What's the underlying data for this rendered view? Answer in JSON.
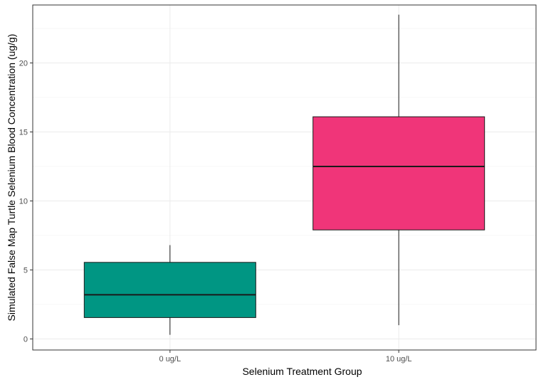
{
  "chart_data": {
    "type": "boxplot",
    "title": "",
    "xlabel": "Selenium Treatment Group",
    "ylabel": "Simulated False Map Turtle Selenium Blood Concentration (ug/g)",
    "ylim": [
      -0.8,
      24.2
    ],
    "yticks": [
      0,
      5,
      10,
      15,
      20
    ],
    "grid": true,
    "legend": "none",
    "categories": [
      "0 ug/L",
      "10 ug/L"
    ],
    "boxes": [
      {
        "category": "0 ug/L",
        "min": 0.3,
        "q1": 1.55,
        "median": 3.2,
        "q3": 5.55,
        "max": 6.8,
        "color": "#009683"
      },
      {
        "category": "10 ug/L",
        "min": 1.0,
        "q1": 7.9,
        "median": 12.5,
        "q3": 16.1,
        "max": 23.5,
        "color": "#F03579"
      }
    ]
  }
}
